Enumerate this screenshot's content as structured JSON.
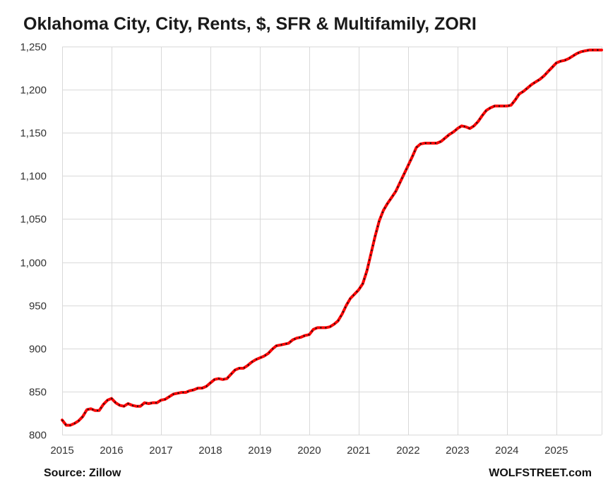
{
  "chart_data": {
    "type": "line",
    "title": "Oklahoma City, City, Rents, $, SFR & Multifamily, ZORI",
    "xlabel": "",
    "ylabel": "",
    "xlim": [
      2015,
      2025.917
    ],
    "ylim": [
      800,
      1250
    ],
    "y_ticks": [
      800,
      850,
      900,
      950,
      1000,
      1050,
      1100,
      1150,
      1200,
      1250
    ],
    "y_tick_labels": [
      "800",
      "850",
      "900",
      "950",
      "1,000",
      "1,050",
      "1,100",
      "1,150",
      "1,200",
      "1,250"
    ],
    "x_ticks": [
      2015,
      2016,
      2017,
      2018,
      2019,
      2020,
      2021,
      2022,
      2023,
      2024,
      2025
    ],
    "x_tick_labels": [
      "2015",
      "2016",
      "2017",
      "2018",
      "2019",
      "2020",
      "2021",
      "2022",
      "2023",
      "2024",
      "2025"
    ],
    "grid": true,
    "legend": "none",
    "source": "Source: Zillow",
    "watermark": "WOLFSTREET.com",
    "colors": {
      "line": "#ff0000",
      "marker": "#1a1a1a",
      "grid": "#d9d9d9"
    },
    "series": [
      {
        "x": [
          2015.0,
          2015.083,
          2015.167,
          2015.25,
          2015.333,
          2015.417,
          2015.5,
          2015.583,
          2015.667,
          2015.75,
          2015.833,
          2015.917,
          2016.0,
          2016.083,
          2016.167,
          2016.25,
          2016.333,
          2016.417,
          2016.5,
          2016.583,
          2016.667,
          2016.75,
          2016.833,
          2016.917,
          2017.0,
          2017.083,
          2017.167,
          2017.25,
          2017.333,
          2017.417,
          2017.5,
          2017.583,
          2017.667,
          2017.75,
          2017.833,
          2017.917,
          2018.0,
          2018.083,
          2018.167,
          2018.25,
          2018.333,
          2018.417,
          2018.5,
          2018.583,
          2018.667,
          2018.75,
          2018.833,
          2018.917,
          2019.0,
          2019.083,
          2019.167,
          2019.25,
          2019.333,
          2019.417,
          2019.5,
          2019.583,
          2019.667,
          2019.75,
          2019.833,
          2019.917,
          2020.0,
          2020.083,
          2020.167,
          2020.25,
          2020.333,
          2020.417,
          2020.5,
          2020.583,
          2020.667,
          2020.75,
          2020.833,
          2020.917,
          2021.0,
          2021.083,
          2021.167,
          2021.25,
          2021.333,
          2021.417,
          2021.5,
          2021.583,
          2021.667,
          2021.75,
          2021.833,
          2021.917,
          2022.0,
          2022.083,
          2022.167,
          2022.25,
          2022.333,
          2022.417,
          2022.5,
          2022.583,
          2022.667,
          2022.75,
          2022.833,
          2022.917,
          2023.0,
          2023.083,
          2023.167,
          2023.25,
          2023.333,
          2023.417,
          2023.5,
          2023.583,
          2023.667,
          2023.75,
          2023.833,
          2023.917,
          2024.0,
          2024.083,
          2024.167,
          2024.25,
          2024.333,
          2024.417,
          2024.5,
          2024.583,
          2024.667,
          2024.75,
          2024.833,
          2024.917,
          2025.0,
          2025.083,
          2025.167,
          2025.25,
          2025.333,
          2025.417,
          2025.5,
          2025.583,
          2025.667,
          2025.75,
          2025.833,
          2025.917
        ],
        "values": [
          817,
          811,
          811,
          813,
          816,
          821,
          829,
          830,
          828,
          828,
          835,
          840,
          842,
          837,
          834,
          833,
          836,
          834,
          833,
          833,
          837,
          836,
          837,
          837,
          840,
          841,
          844,
          847,
          848,
          849,
          849,
          851,
          852,
          854,
          854,
          856,
          860,
          864,
          865,
          864,
          865,
          870,
          875,
          877,
          877,
          880,
          884,
          887,
          889,
          891,
          894,
          899,
          903,
          904,
          905,
          906,
          910,
          912,
          913,
          915,
          916,
          922,
          924,
          924,
          924,
          925,
          928,
          932,
          940,
          950,
          958,
          963,
          968,
          975,
          990,
          1010,
          1030,
          1048,
          1060,
          1068,
          1075,
          1082,
          1092,
          1102,
          1112,
          1122,
          1133,
          1137,
          1138,
          1138,
          1138,
          1138,
          1140,
          1144,
          1148,
          1151,
          1155,
          1158,
          1157,
          1155,
          1158,
          1163,
          1170,
          1176,
          1179,
          1181,
          1181,
          1181,
          1181,
          1182,
          1188,
          1195,
          1198,
          1202,
          1206,
          1209,
          1212,
          1216,
          1221,
          1226,
          1231,
          1233,
          1234,
          1236,
          1239,
          1242,
          1244,
          1245,
          1246,
          1246,
          1246,
          1246
        ]
      }
    ]
  }
}
